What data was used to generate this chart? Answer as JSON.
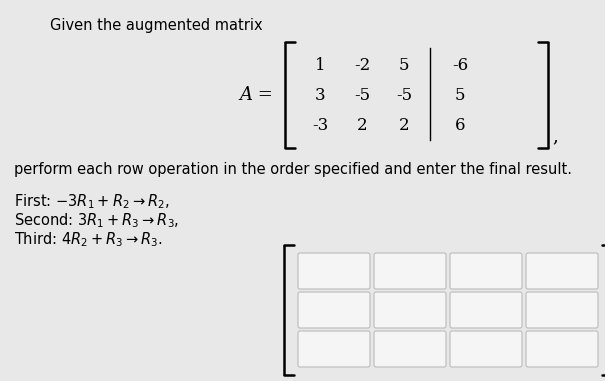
{
  "title_text": "Given the augmented matrix",
  "matrix_label": "A =",
  "matrix": [
    [
      1,
      -2,
      5,
      -6
    ],
    [
      3,
      -5,
      -5,
      5
    ],
    [
      -3,
      2,
      2,
      6
    ]
  ],
  "body_text": "perform each row operation in the order specified and enter the final result.",
  "grid_rows": 3,
  "grid_cols": 4,
  "bg_color": "#e8e8e8",
  "box_color": "#f5f5f5",
  "font_size_title": 10.5,
  "font_size_body": 10.5,
  "font_size_matrix": 12,
  "font_size_ops": 10.5
}
